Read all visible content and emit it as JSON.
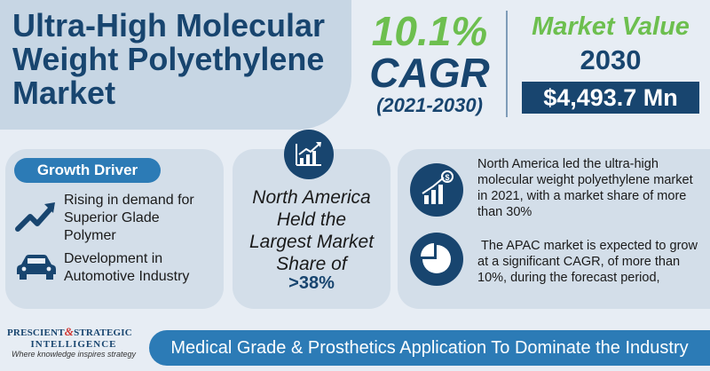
{
  "title": {
    "line1": "Ultra-High Molecular",
    "line2": "Weight Polyethylene",
    "line3": "Market"
  },
  "cagr": {
    "value": "10.1%",
    "label": "CAGR",
    "period": "(2021-2030)"
  },
  "market_value": {
    "title": "Market Value",
    "year": "2030",
    "value": "$4,493.7 Mn"
  },
  "growth_driver": {
    "badge": "Growth Driver",
    "items": [
      {
        "icon": "trend-up-arrow-icon",
        "text_lines": [
          "Rising in demand for",
          "Superior Glade",
          "Polymer"
        ]
      },
      {
        "icon": "car-icon",
        "text_lines": [
          "Development in",
          "Automotive Industry"
        ]
      }
    ]
  },
  "center": {
    "icon": "line-chart-icon",
    "text_lines": [
      "North America",
      "Held the",
      "Largest Market",
      "Share of"
    ],
    "share": ">38%"
  },
  "insights": [
    {
      "icon": "growth-bar-dollar-icon",
      "text": "North America led the ultra-high molecular weight polyethylene market in 2021, with a market share of more than 30%"
    },
    {
      "icon": "pie-chart-icon",
      "text": " The APAC market is expected to grow at a significant CAGR, of more than 10%, during the forecast period,"
    }
  ],
  "logo": {
    "line1a": "PRESCIENT",
    "amp": "&",
    "line1b": "STRATEGIC",
    "line2": "INTELLIGENCE",
    "tagline": "Where knowledge inspires strategy"
  },
  "banner": "Medical Grade & Prosthetics Application To Dominate the Industry",
  "colors": {
    "navy": "#18456f",
    "green": "#6dbf4f",
    "blue": "#2c7bb6",
    "panel": "#d3dee9",
    "background": "#e7edf4"
  }
}
